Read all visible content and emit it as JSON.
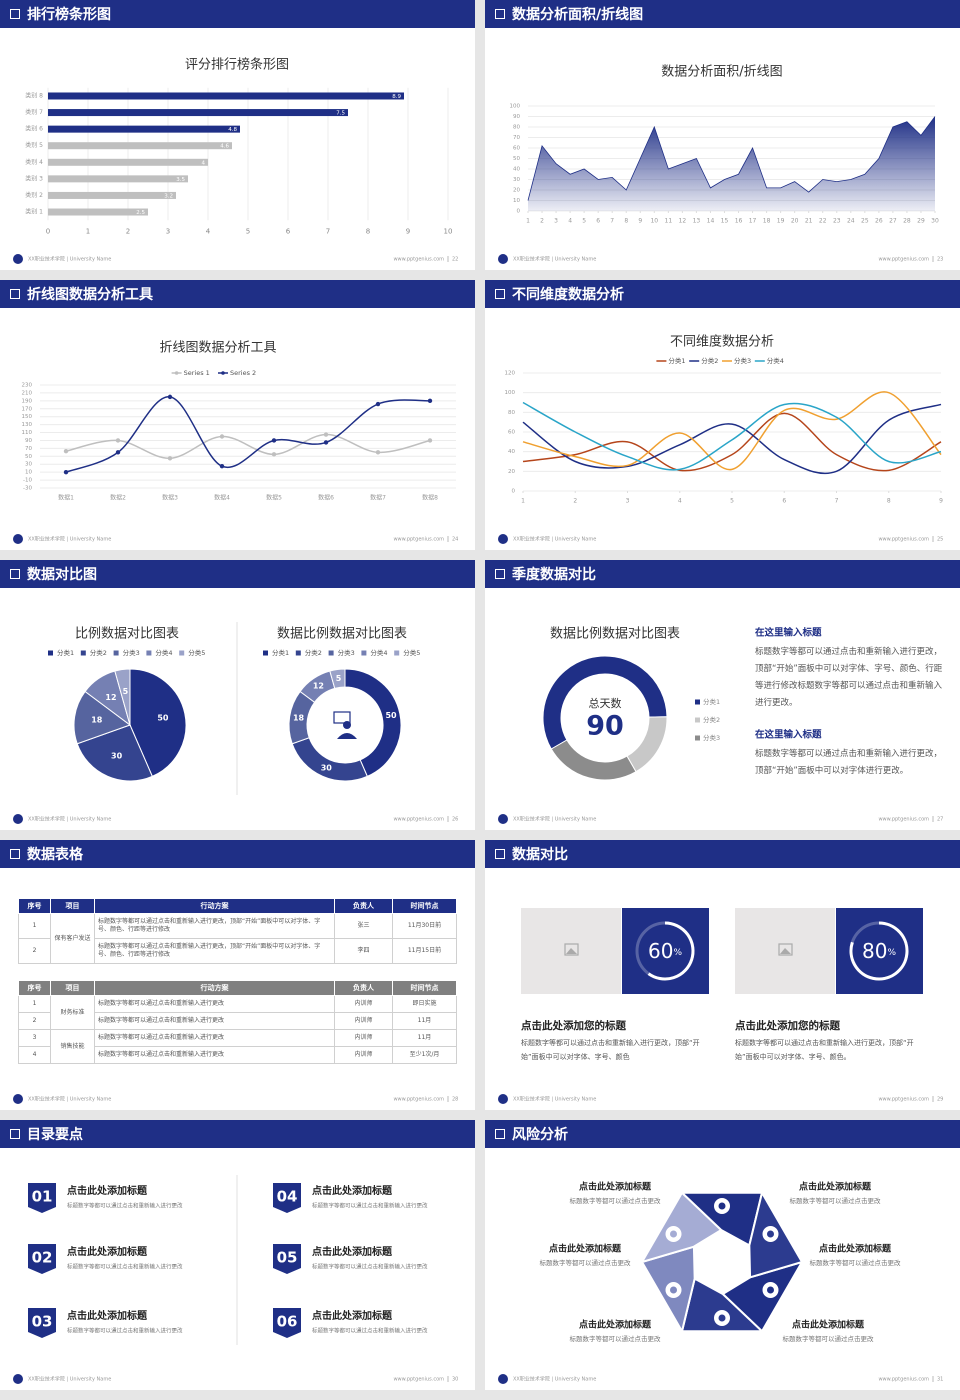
{
  "footer": {
    "school": "XX职业技术学院 | University Name",
    "site": "www.pptgenius.com"
  },
  "slides": [
    {
      "title": "排行榜条形图",
      "page": 22
    },
    {
      "title": "数据分析面积/折线图",
      "page": 23
    },
    {
      "title": "折线图数据分析工具",
      "page": 24
    },
    {
      "title": "不同维度数据分析",
      "page": 25
    },
    {
      "title": "数据对比图",
      "page": 26
    },
    {
      "title": "季度数据对比",
      "page": 27
    },
    {
      "title": "数据表格",
      "page": 28
    },
    {
      "title": "数据对比",
      "page": 29
    },
    {
      "title": "目录要点",
      "page": 30
    },
    {
      "title": "风险分析",
      "page": 31
    }
  ],
  "chart_data": [
    {
      "type": "bar",
      "title": "评分排行榜条形图",
      "categories": [
        "类别 1",
        "类别 2",
        "类别 3",
        "类别 4",
        "类别 5",
        "类别 6",
        "类别 7",
        "类别 8"
      ],
      "values": [
        2.5,
        3.2,
        3.5,
        4,
        4.6,
        4.8,
        7.5,
        8.9
      ],
      "colors": [
        "#bfbfbf",
        "#bfbfbf",
        "#bfbfbf",
        "#bfbfbf",
        "#bfbfbf",
        "#1f2f86",
        "#1f2f86",
        "#1f2f86"
      ],
      "xlim": [
        0,
        10
      ],
      "xticks": [
        0,
        1,
        2,
        3,
        4,
        5,
        6,
        7,
        8,
        9,
        10
      ],
      "grid": true
    },
    {
      "type": "area",
      "title": "数据分析面积/折线图",
      "x": [
        1,
        2,
        3,
        4,
        5,
        6,
        7,
        8,
        9,
        10,
        11,
        12,
        13,
        14,
        15,
        16,
        17,
        18,
        19,
        20,
        21,
        22,
        23,
        24,
        25,
        26,
        27,
        28,
        29,
        30
      ],
      "values": [
        10,
        62,
        45,
        35,
        40,
        30,
        32,
        20,
        50,
        80,
        40,
        45,
        50,
        22,
        30,
        35,
        60,
        22,
        22,
        28,
        18,
        30,
        28,
        30,
        35,
        50,
        80,
        85,
        72,
        90
      ],
      "color": "#1f2f86",
      "xlim": [
        1,
        30
      ],
      "xticks": [
        1,
        2,
        3,
        4,
        5,
        6,
        7,
        8,
        9,
        10,
        11,
        12,
        13,
        14,
        15,
        16,
        17,
        18,
        19,
        20,
        21,
        22,
        23,
        24,
        25,
        26,
        27,
        28,
        29,
        30
      ],
      "ylim": [
        0,
        100
      ],
      "yticks": [
        0,
        10,
        20,
        30,
        40,
        50,
        60,
        70,
        80,
        90,
        100
      ],
      "grid": true
    },
    {
      "type": "line",
      "title": "折线图数据分析工具",
      "categories": [
        "数据1",
        "数据2",
        "数据3",
        "数据4",
        "数据5",
        "数据6",
        "数据7",
        "数据8"
      ],
      "series": [
        {
          "name": "Series 1",
          "color": "#bfbfbf",
          "values": [
            63,
            90,
            45,
            100,
            55,
            105,
            60,
            90
          ]
        },
        {
          "name": "Series 2",
          "color": "#1f2f86",
          "values": [
            10,
            60,
            200,
            25,
            90,
            85,
            182,
            190
          ]
        }
      ],
      "ylim": [
        -30,
        230
      ],
      "yticks": [
        -30,
        -10,
        10,
        30,
        50,
        70,
        90,
        110,
        130,
        150,
        170,
        190,
        210,
        230
      ],
      "grid": true,
      "smooth": true,
      "markers": true,
      "legend": "top"
    },
    {
      "type": "line",
      "title": "不同维度数据分析",
      "x": [
        1,
        2,
        3,
        4,
        5,
        6,
        7,
        8,
        9
      ],
      "xlim": [
        1,
        9
      ],
      "xticks": [
        1,
        2,
        3,
        4,
        5,
        6,
        7,
        8,
        9
      ],
      "series": [
        {
          "name": "分类1",
          "color": "#b5451b",
          "values": [
            30,
            37,
            50,
            21,
            37,
            79,
            37,
            21,
            50
          ]
        },
        {
          "name": "分类2",
          "color": "#1f2f86",
          "values": [
            70,
            30,
            25,
            47,
            68,
            32,
            20,
            72,
            88
          ]
        },
        {
          "name": "分类3",
          "color": "#f0a030",
          "values": [
            50,
            35,
            26,
            59,
            22,
            82,
            73,
            100,
            37
          ]
        },
        {
          "name": "分类4",
          "color": "#2aa5c8",
          "values": [
            90,
            60,
            35,
            22,
            52,
            88,
            75,
            30,
            40
          ]
        }
      ],
      "ylim": [
        0,
        120
      ],
      "yticks": [
        0,
        20,
        40,
        60,
        80,
        100,
        120
      ],
      "grid": true,
      "smooth": true,
      "markers": false,
      "legend": "top"
    },
    {
      "type": "pie",
      "title": "比例数据对比图表",
      "categories": [
        "分类1",
        "分类2",
        "分类3",
        "分类4",
        "分类5"
      ],
      "values": [
        50,
        30,
        18,
        12,
        5
      ],
      "colors": [
        "#1f2f86",
        "#34448f",
        "#56649f",
        "#7580b3",
        "#9aa2c8"
      ],
      "data_labels": true,
      "legend": "top"
    },
    {
      "type": "donut",
      "title": "数据比例数据对比图表",
      "categories": [
        "分类1",
        "分类2",
        "分类3",
        "分类4",
        "分类5"
      ],
      "values": [
        50,
        30,
        18,
        12,
        5
      ],
      "colors": [
        "#1f2f86",
        "#34448f",
        "#56649f",
        "#7580b3",
        "#9aa2c8"
      ],
      "data_labels": true,
      "legend": "top"
    },
    {
      "type": "donut",
      "title": "数据比例数据对比图表",
      "categories": [
        "分类1",
        "分类2",
        "分类3"
      ],
      "values": [
        58,
        17,
        25
      ],
      "colors": [
        "#1f2f86",
        "#c8c8c8",
        "#8c8c8c"
      ],
      "data_labels": false,
      "center_label": "总天数",
      "center_value": 90,
      "legend": "right"
    }
  ],
  "quarter": {
    "blocks": [
      {
        "heading": "在这里输入标题",
        "text": "标题数字等都可以通过点击和重新输入进行更改，顶部“开始”面板中可以对字体、字号、颜色、行距等进行修改标题数字等都可以通过点击和重新输入进行更改。"
      },
      {
        "heading": "在这里输入标题",
        "text": "标题数字等都可以通过点击和重新输入进行更改，顶部“开始”面板中可以对字体进行更改。"
      }
    ]
  },
  "table": {
    "tables": [
      {
        "header_color": "#1f2f86",
        "header": [
          "序号",
          "项目",
          "行动方案",
          "负责人",
          "时间节点"
        ],
        "groups": [
          {
            "project": "保有客户发送",
            "rows": [
              [
                "1",
                "标题数字等都可以通过点击和重新输入进行更改，顶部“开始”面板中可以对字体、字号、颜色、行距等进行修改",
                "张三",
                "11月30日前"
              ],
              [
                "2",
                "标题数字等都可以通过点击和重新输入进行更改，顶部“开始”面板中可以对字体、字号、颜色、行距等进行修改",
                "李四",
                "11月15日前"
              ]
            ]
          }
        ]
      },
      {
        "header_color": "#808080",
        "header": [
          "序号",
          "项目",
          "行动方案",
          "负责人",
          "时间节点"
        ],
        "groups": [
          {
            "project": "财务标准",
            "rows": [
              [
                "1",
                "标题数字等都可以通过点击和重新输入进行更改",
                "内训师",
                "即日实施"
              ],
              [
                "2",
                "标题数字等都可以通过点击和重新输入进行更改",
                "内训师",
                "11月"
              ]
            ]
          },
          {
            "project": "销售技能",
            "rows": [
              [
                "3",
                "标题数字等都可以通过点击和重新输入进行更改",
                "内训师",
                "11月"
              ],
              [
                "4",
                "标题数字等都可以通过点击和重新输入进行更改",
                "内训师",
                "至少1次/月"
              ]
            ]
          }
        ]
      }
    ]
  },
  "compare": {
    "cards": [
      {
        "value": 60,
        "unit": "%",
        "title": "点击此处添加您的标题",
        "text": "标题数字等都可以通过点击和重新输入进行更改，顶部“开始”面板中可以对字体、字号、颜色"
      },
      {
        "value": 80,
        "unit": "%",
        "title": "点击此处添加您的标题",
        "text": "标题数字等都可以通过点击和重新输入进行更改，顶部“开始”面板中可以对字体、字号、颜色。"
      }
    ]
  },
  "toc": {
    "items": [
      {
        "number": "01",
        "title": "点击此处添加标题",
        "text": "标题数字等都可以通过点击和重新输入进行更改"
      },
      {
        "number": "02",
        "title": "点击此处添加标题",
        "text": "标题数字等都可以通过点击和重新输入进行更改"
      },
      {
        "number": "03",
        "title": "点击此处添加标题",
        "text": "标题数字等都可以通过点击和重新输入进行更改"
      },
      {
        "number": "04",
        "title": "点击此处添加标题",
        "text": "标题数字等都可以通过点击和重新输入进行更改"
      },
      {
        "number": "05",
        "title": "点击此处添加标题",
        "text": "标题数字等都可以通过点击和重新输入进行更改"
      },
      {
        "number": "06",
        "title": "点击此处添加标题",
        "text": "标题数字等都可以通过点击和重新输入进行更改"
      }
    ]
  },
  "risk": {
    "items": [
      {
        "title": "点击此处添加标题",
        "text": "标题数字等都可以通过点击更改"
      },
      {
        "title": "点击此处添加标题",
        "text": "标题数字等都可以通过点击更改"
      },
      {
        "title": "点击此处添加标题",
        "text": "标题数字等都可以通过点击更改"
      },
      {
        "title": "点击此处添加标题",
        "text": "标题数字等都可以通过点击更改"
      },
      {
        "title": "点击此处添加标题",
        "text": "标题数字等都可以通过点击更改"
      },
      {
        "title": "点击此处添加标题",
        "text": "标题数字等都可以通过点击更改"
      }
    ]
  }
}
